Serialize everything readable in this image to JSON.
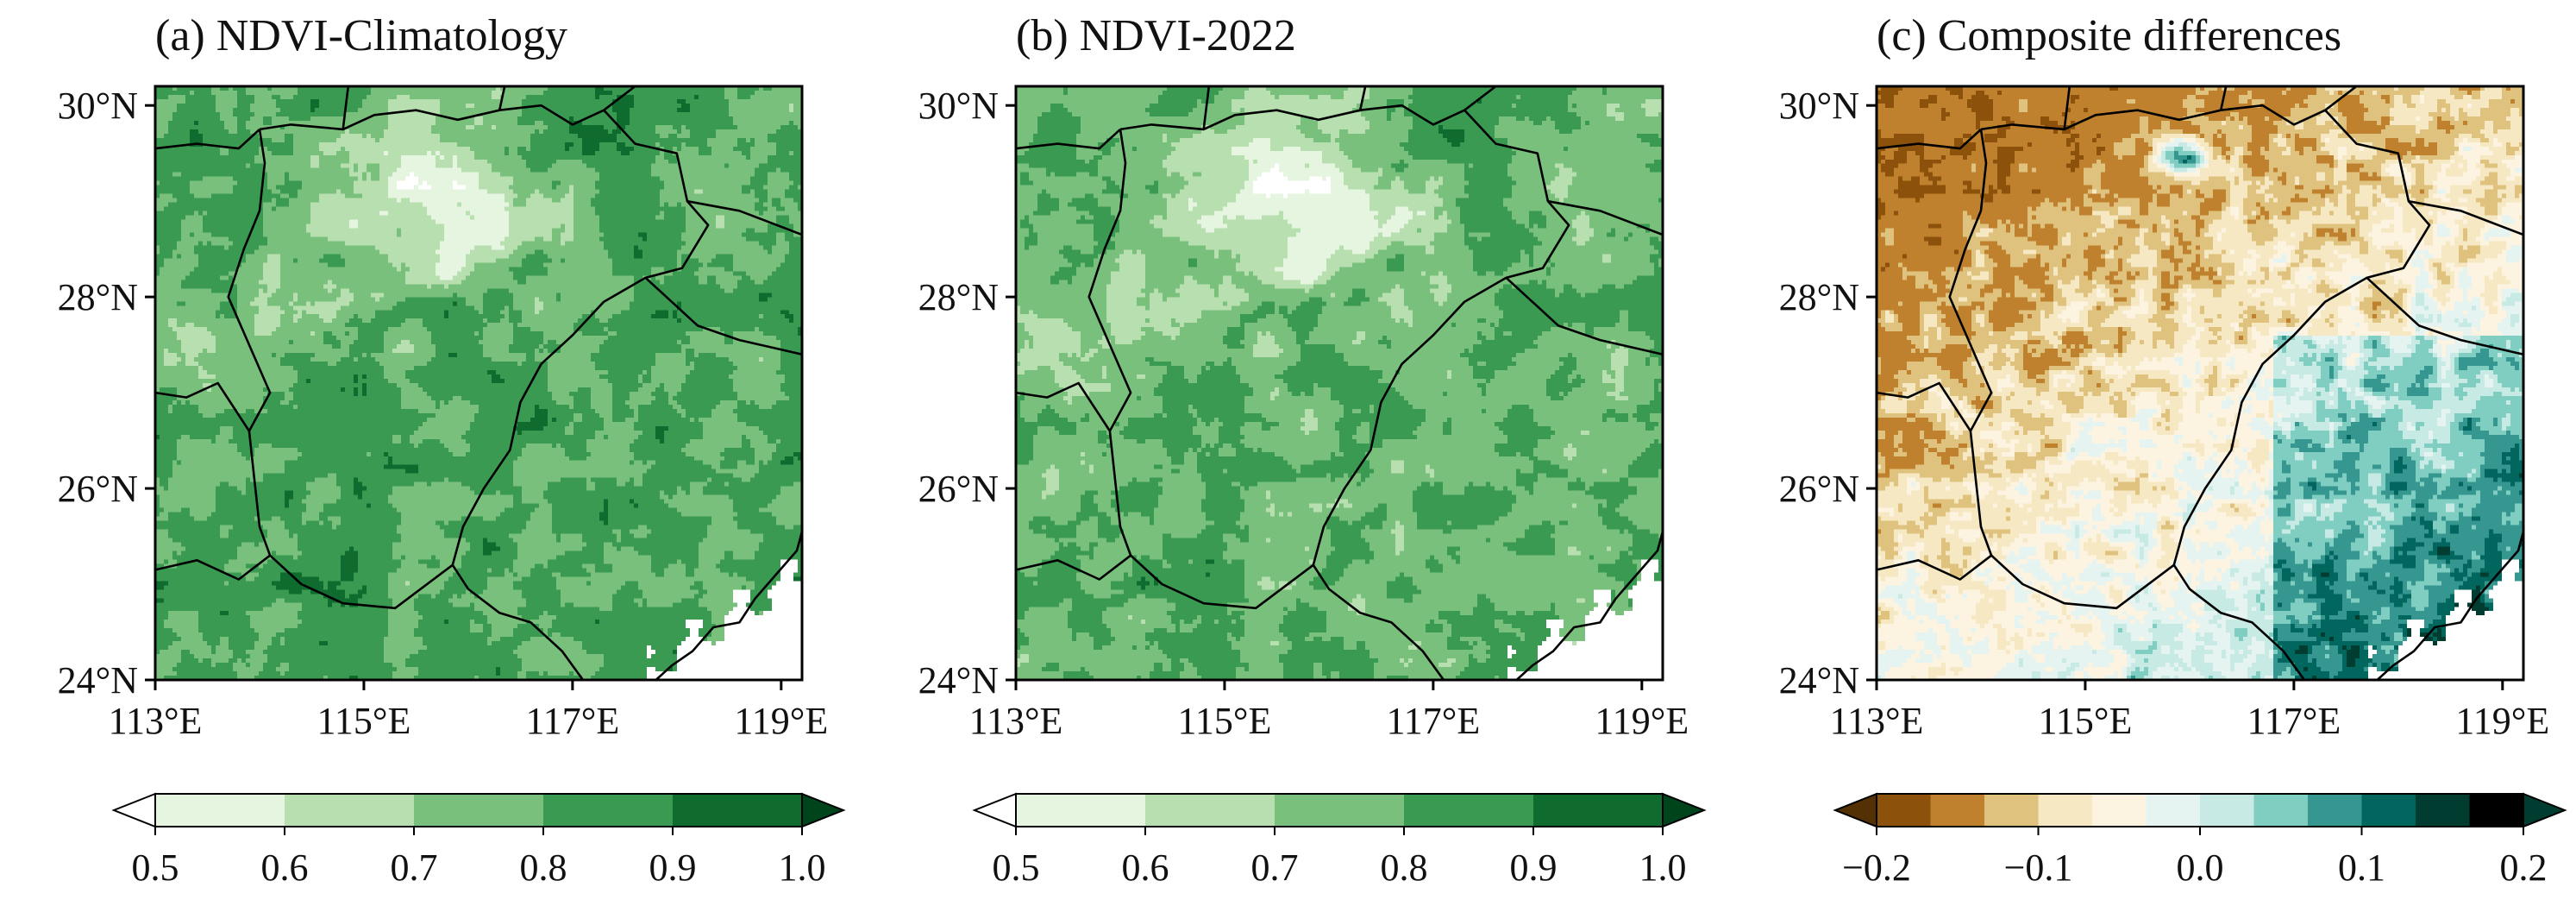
{
  "figure": {
    "panels": [
      {
        "title": "(a) NDVI-Climatology",
        "field": "ndvi_climatology",
        "colorbar": "green"
      },
      {
        "title": "(b) NDVI-2022",
        "field": "ndvi_2022",
        "colorbar": "green"
      },
      {
        "title": "(c) Composite differences",
        "field": "ndvi_difference",
        "colorbar": "brbg"
      }
    ],
    "lat_ticks": [
      "30°N",
      "28°N",
      "26°N",
      "24°N"
    ],
    "lon_ticks": [
      "113°E",
      "115°E",
      "117°E",
      "119°E"
    ],
    "lon_range": [
      113,
      119.2
    ],
    "lat_range": [
      24,
      30.2
    ],
    "colorbars": {
      "green": {
        "levels": [
          0.5,
          0.6,
          0.7,
          0.8,
          0.9,
          1.0
        ],
        "tick_labels": [
          "0.5",
          "0.6",
          "0.7",
          "0.8",
          "0.9",
          "1.0"
        ],
        "colors": [
          "#ffffff",
          "#e6f5e0",
          "#b7dfb0",
          "#79c07c",
          "#3a9a52",
          "#0f6b2e",
          "#00441b"
        ],
        "extend": "both"
      },
      "brbg": {
        "levels": [
          -0.2,
          -0.15,
          -0.1,
          -0.075,
          -0.05,
          -0.025,
          0.0,
          0.025,
          0.05,
          0.075,
          0.1,
          0.15,
          0.2
        ],
        "tick_labels": [
          "−0.2",
          "−0.1",
          "0.0",
          "0.1",
          "0.2"
        ],
        "tick_values": [
          -0.2,
          -0.1,
          0.0,
          0.1,
          0.2
        ],
        "colors": [
          "#543005",
          "#8c510a",
          "#bf812d",
          "#dfc27d",
          "#f6e8c3",
          "#fdf3e1",
          "#e6f4f1",
          "#c7eae5",
          "#80cdc1",
          "#35978f",
          "#01665e",
          "#003c30"
        ],
        "extend": "both"
      }
    },
    "border_color": "#000000",
    "sea_color": "#ffffff"
  }
}
